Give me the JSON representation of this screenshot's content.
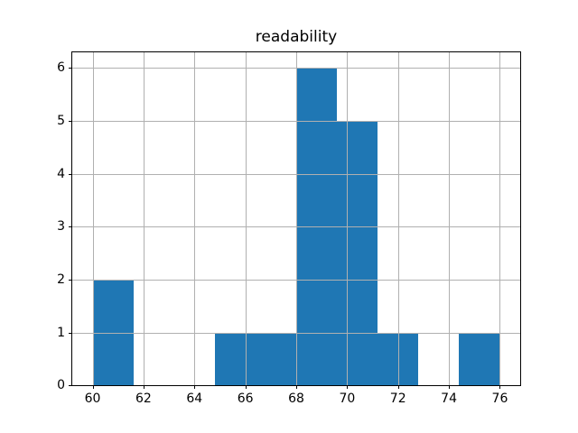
{
  "figure": {
    "title": "readability"
  },
  "chart_data": {
    "type": "bar",
    "subtype": "histogram",
    "title": "readability",
    "xlabel": "",
    "ylabel": "",
    "bin_edges": [
      60.0,
      61.6,
      63.2,
      64.8,
      66.4,
      68.0,
      69.6,
      71.2,
      72.8,
      74.4,
      76.0
    ],
    "counts": [
      2,
      0,
      0,
      1,
      1,
      6,
      5,
      1,
      0,
      1
    ],
    "x_ticks": [
      60,
      62,
      64,
      66,
      68,
      70,
      72,
      74,
      76
    ],
    "y_ticks": [
      0,
      1,
      2,
      3,
      4,
      5,
      6
    ],
    "xlim": [
      59.2,
      76.8
    ],
    "ylim": [
      0,
      6.3
    ],
    "grid": true,
    "grid_above_bars": true,
    "legend": false,
    "bar_color": "#1f77b4",
    "grid_color": "#b0b0b0",
    "spine_color": "#000000",
    "tick_color": "#000000",
    "background_color": "#ffffff"
  }
}
